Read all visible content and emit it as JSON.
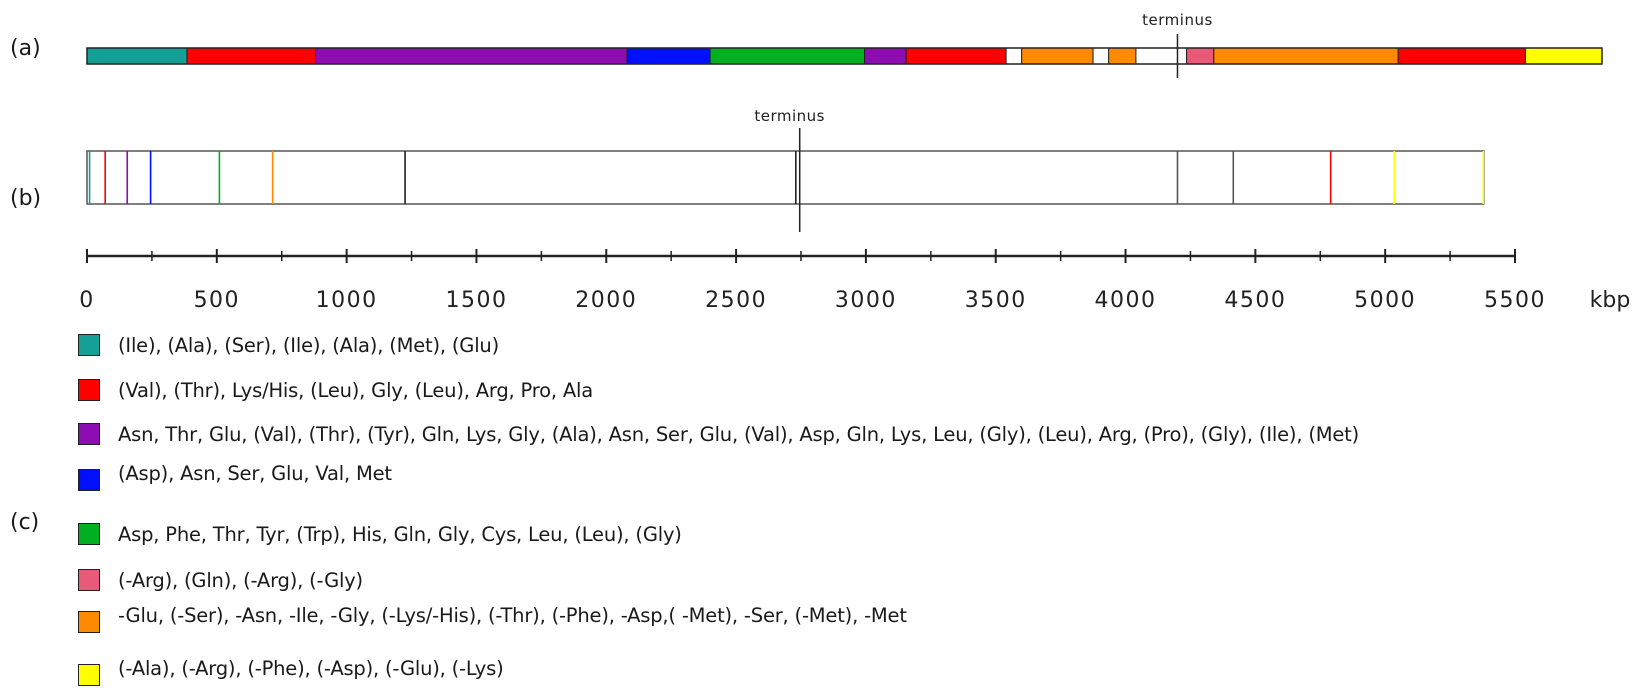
{
  "panels": {
    "a": "(a)",
    "b": "(b)",
    "c": "(c)"
  },
  "terminus_label": "terminus",
  "axis": {
    "unit": "kbp",
    "min": 0,
    "max": 5500,
    "ticks": [
      0,
      500,
      1000,
      1500,
      2000,
      2500,
      3000,
      3500,
      4000,
      4500,
      5000,
      5500
    ]
  },
  "colors": {
    "teal": "#14a096",
    "red": "#ff0000",
    "purple": "#8e0db3",
    "blue": "#0010ff",
    "green": "#00b020",
    "pink": "#e85a78",
    "orange": "#ff8a00",
    "yellow": "#ffff00",
    "white": "#ffffff",
    "black": "#222222",
    "gray": "#555555"
  },
  "track_a": {
    "start_kbp": 0,
    "end_kbp": 5835,
    "terminus_kbp": 4200,
    "segments": [
      {
        "start": 0,
        "end": 385,
        "color": "teal"
      },
      {
        "start": 385,
        "end": 880,
        "color": "red"
      },
      {
        "start": 880,
        "end": 2080,
        "color": "purple"
      },
      {
        "start": 2080,
        "end": 2400,
        "color": "blue"
      },
      {
        "start": 2400,
        "end": 2995,
        "color": "green"
      },
      {
        "start": 2995,
        "end": 3155,
        "color": "purple"
      },
      {
        "start": 3155,
        "end": 3540,
        "color": "red"
      },
      {
        "start": 3540,
        "end": 3600,
        "color": "white"
      },
      {
        "start": 3600,
        "end": 3875,
        "color": "orange"
      },
      {
        "start": 3875,
        "end": 3935,
        "color": "white"
      },
      {
        "start": 3935,
        "end": 4040,
        "color": "orange"
      },
      {
        "start": 4040,
        "end": 4235,
        "color": "white"
      },
      {
        "start": 4235,
        "end": 4340,
        "color": "pink"
      },
      {
        "start": 4340,
        "end": 5050,
        "color": "orange"
      },
      {
        "start": 5050,
        "end": 5540,
        "color": "red"
      },
      {
        "start": 5540,
        "end": 5835,
        "color": "yellow"
      }
    ]
  },
  "track_b": {
    "start_kbp": 0,
    "end_kbp": 5380,
    "terminus_kbp": 2745,
    "markers": [
      {
        "kbp": 10,
        "color": "teal"
      },
      {
        "kbp": 70,
        "color": "red"
      },
      {
        "kbp": 155,
        "color": "purple"
      },
      {
        "kbp": 245,
        "color": "blue"
      },
      {
        "kbp": 510,
        "color": "green"
      },
      {
        "kbp": 715,
        "color": "orange"
      },
      {
        "kbp": 1225,
        "color": "black"
      },
      {
        "kbp": 2730,
        "color": "black"
      },
      {
        "kbp": 4200,
        "color": "gray"
      },
      {
        "kbp": 4415,
        "color": "gray"
      },
      {
        "kbp": 4790,
        "color": "red"
      },
      {
        "kbp": 5035,
        "color": "yellow"
      },
      {
        "kbp": 5378,
        "color": "yellow"
      }
    ]
  },
  "legend": [
    {
      "color": "teal",
      "text": "(Ile),  (Ala), (Ser), (Ile),  (Ala), (Met), (Glu)"
    },
    {
      "color": "red",
      "text": "(Val),  (Thr), Lys/His, (Leu), Gly, (Leu), Arg, Pro, Ala"
    },
    {
      "color": "purple",
      "text": "Asn, Thr, Glu, (Val),  (Thr), (Tyr), Gln,  Lys, Gly, (Ala), Asn, Ser, Glu, (Val),  Asp, Gln, Lys, Leu, (Gly), (Leu), Arg, (Pro), (Gly), (Ile),  (Met)"
    },
    {
      "color": "blue",
      "text": "(Asp), Asn, Ser, Glu, Val, Met"
    },
    {
      "color": "green",
      "text": "Asp, Phe, Thr, Tyr, (Trp), His, Gln, Gly, Cys, Leu, (Leu), (Gly)"
    },
    {
      "color": "pink",
      "text": "(-Arg), (Gln), (-Arg), (-Gly)"
    },
    {
      "color": "orange",
      "text": "-Glu, (-Ser), -Asn, -Ile,  -Gly, (-Lys/-His),  (-Thr), (-Phe), -Asp,( -Met), -Ser, (-Met), -Met"
    },
    {
      "color": "yellow",
      "text": "(-Ala), (-Arg), (-Phe), (-Asp), (-Glu), (-Lys)"
    }
  ]
}
